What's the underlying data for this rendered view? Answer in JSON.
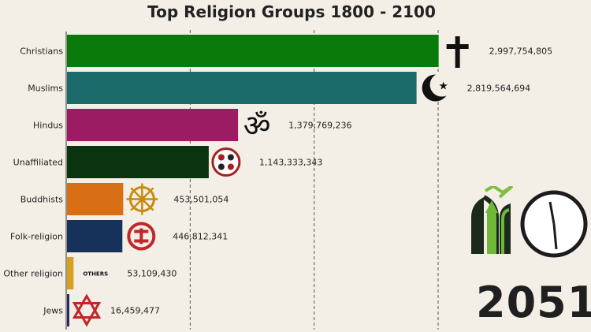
{
  "chart_data": {
    "type": "bar",
    "orientation": "horizontal",
    "title": "Top Religion Groups 1800 - 2100",
    "year_label": "2051",
    "xlim": [
      0,
      3300000000
    ],
    "gridlines": [
      1000000000,
      2000000000,
      3000000000
    ],
    "grid": true,
    "categories": [
      "Christians",
      "Muslims",
      "Hindus",
      "Unaffiliated",
      "Buddhists",
      "Folk-religion",
      "Other religion",
      "Jews"
    ],
    "values": [
      2997754805,
      2819564694,
      1379769236,
      1143333343,
      453501054,
      446812341,
      53109430,
      16459477
    ],
    "value_labels": [
      "2,997,754,805",
      "2,819,564,694",
      "1,379,769,236",
      "1,143,333,343",
      "453,501,054",
      "446,812,341",
      "53,109,430",
      "16,459,477"
    ],
    "colors": [
      "#0a7a0a",
      "#1a6b69",
      "#9c1c63",
      "#0a3310",
      "#d96f14",
      "#16325a",
      "#d8a020",
      "#2a2660"
    ],
    "icons": [
      "cross-icon",
      "crescent-icon",
      "om-icon",
      "unaffiliated-icon",
      "dharma-wheel-icon",
      "folk-symbol-icon",
      "others-tag",
      "star-of-david-icon"
    ],
    "others_text": "OTHERS"
  }
}
